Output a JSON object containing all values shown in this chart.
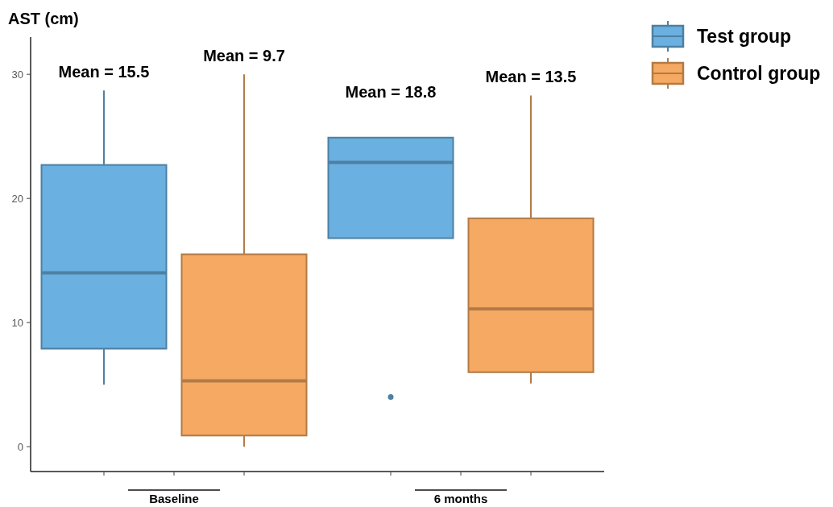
{
  "chart_data": {
    "type": "box",
    "ylabel": "AST (cm)",
    "categories": [
      "Baseline",
      "6 months"
    ],
    "series": [
      {
        "name": "Test group",
        "color": "#6ab0e0",
        "boxes": [
          {
            "low": 5.0,
            "q1": 7.9,
            "median": 14.0,
            "q3": 22.7,
            "high": 28.7
          },
          {
            "low": 16.8,
            "q1": 16.8,
            "median": 22.9,
            "q3": 24.9,
            "high": 24.9,
            "outliers": [
              4.0
            ]
          }
        ]
      },
      {
        "name": "Control group",
        "color": "#f5a962",
        "boxes": [
          {
            "low": 0.0,
            "q1": 0.9,
            "median": 5.3,
            "q3": 15.5,
            "high": 30.0
          },
          {
            "low": 5.1,
            "q1": 6.0,
            "median": 11.1,
            "q3": 18.4,
            "high": 28.3
          }
        ]
      }
    ],
    "ylim": [
      -2,
      33
    ],
    "yticks": [
      0,
      10,
      20,
      30
    ],
    "grid": false,
    "legend": "top right",
    "annotations": [
      "Mean = 15.5",
      "Mean = 9.7",
      "Mean = 18.8",
      "Mean = 13.5"
    ]
  }
}
